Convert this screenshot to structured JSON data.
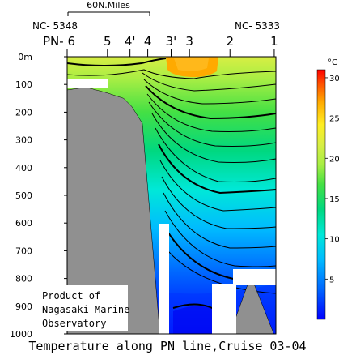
{
  "chart_data": {
    "type": "heatmap",
    "title": "Temperature along PN line,Cruise 03-04",
    "scale_bar_label": "60N.Miles",
    "station_codes": {
      "left": "NC- 5348",
      "right": "NC- 5333"
    },
    "stations": [
      {
        "label": "PN- 6",
        "x_frac": 0.0
      },
      {
        "label": "5",
        "x_frac": 0.193
      },
      {
        "label": "4'",
        "x_frac": 0.301
      },
      {
        "label": "4",
        "x_frac": 0.386
      },
      {
        "label": "3'",
        "x_frac": 0.498
      },
      {
        "label": "3",
        "x_frac": 0.586
      },
      {
        "label": "2",
        "x_frac": 0.78
      },
      {
        "label": "1",
        "x_frac": 0.992
      }
    ],
    "ylabel_ticks": [
      "0m",
      "100",
      "200",
      "300",
      "400",
      "500",
      "600",
      "700",
      "800",
      "900",
      "1000"
    ],
    "ylim": [
      0,
      1000
    ],
    "depth_scale": "linear",
    "colorbar": {
      "unit": "°C",
      "range": [
        0,
        31
      ],
      "tick_labels": [
        "30",
        "25",
        "20",
        "15",
        "10",
        "5"
      ],
      "tick_values": [
        30,
        25,
        20,
        15,
        10,
        5
      ],
      "colors": [
        "#0000ff",
        "#0066ff",
        "#00bbff",
        "#00e8d8",
        "#00d880",
        "#44e044",
        "#a8ee44",
        "#d8ee44",
        "#ffee22",
        "#ffaa00",
        "#ff5500",
        "#ff0000"
      ]
    },
    "surface_core_temperature": 28,
    "isotherms_bold_every": 5,
    "annotation": [
      "Product of",
      "Nagasaki Marine",
      "Observatory"
    ],
    "bathymetry_depth_m": [
      {
        "x_frac": 0.0,
        "depth": 120
      },
      {
        "x_frac": 0.09,
        "depth": 110
      },
      {
        "x_frac": 0.19,
        "depth": 130
      },
      {
        "x_frac": 0.27,
        "depth": 150
      },
      {
        "x_frac": 0.31,
        "depth": 180
      },
      {
        "x_frac": 0.36,
        "depth": 240
      },
      {
        "x_frac": 0.4,
        "depth": 600
      },
      {
        "x_frac": 0.44,
        "depth": 960
      },
      {
        "x_frac": 0.46,
        "depth": 1000
      },
      {
        "x_frac": 0.78,
        "depth": 1000
      },
      {
        "x_frac": 0.88,
        "depth": 790
      },
      {
        "x_frac": 0.99,
        "depth": 1000
      }
    ]
  }
}
